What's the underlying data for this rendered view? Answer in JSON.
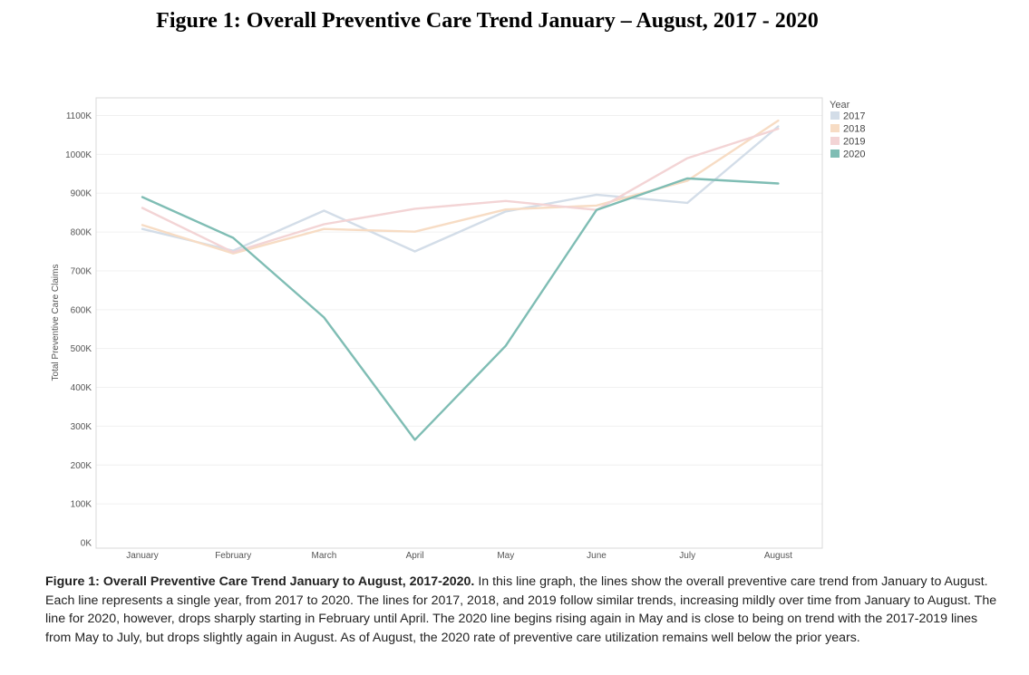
{
  "figure_title": "Figure 1: Overall Preventive Care Trend January – August, 2017 - 2020",
  "caption": {
    "lead": "Figure 1: Overall Preventive Care Trend January to August, 2017-2020.",
    "body": " In this line graph, the lines show the overall preventive care trend from January to August. Each line represents a single year, from 2017 to 2020. The lines for 2017, 2018, and 2019 follow similar trends, increasing mildly over time from January to August. The line for 2020, however, drops sharply starting in February until April. The 2020 line begins rising again in May and is close to being on trend with the 2017-2019 lines from May to July, but drops slightly again in August. As of August, the 2020 rate of preventive care utilization remains well below the prior years."
  },
  "chart_data": {
    "type": "line",
    "title": "Figure 1: Overall Preventive Care Trend January – August, 2017 - 2020",
    "xlabel": "",
    "ylabel": "Total Preventive Care Claims",
    "categories": [
      "January",
      "February",
      "March",
      "April",
      "May",
      "June",
      "July",
      "August"
    ],
    "y_ticks": [
      0,
      100,
      200,
      300,
      400,
      500,
      600,
      700,
      800,
      900,
      1000,
      1100
    ],
    "y_tick_labels": [
      "0K",
      "100K",
      "200K",
      "300K",
      "400K",
      "500K",
      "600K",
      "700K",
      "800K",
      "900K",
      "1000K",
      "1100K"
    ],
    "ylim": [
      0,
      1150
    ],
    "grid": true,
    "legend_title": "Year",
    "legend_position": "right",
    "series": [
      {
        "name": "2017",
        "color": "#d3dde8",
        "values": [
          808,
          752,
          855,
          750,
          853,
          896,
          875,
          1072
        ]
      },
      {
        "name": "2018",
        "color": "#f7dcc4",
        "values": [
          818,
          745,
          808,
          801,
          858,
          868,
          932,
          1087
        ]
      },
      {
        "name": "2019",
        "color": "#f3d4d5",
        "values": [
          862,
          748,
          820,
          860,
          880,
          857,
          990,
          1066
        ]
      },
      {
        "name": "2020",
        "color": "#7fbdb4",
        "values": [
          890,
          785,
          580,
          265,
          507,
          857,
          938,
          925
        ]
      }
    ]
  }
}
